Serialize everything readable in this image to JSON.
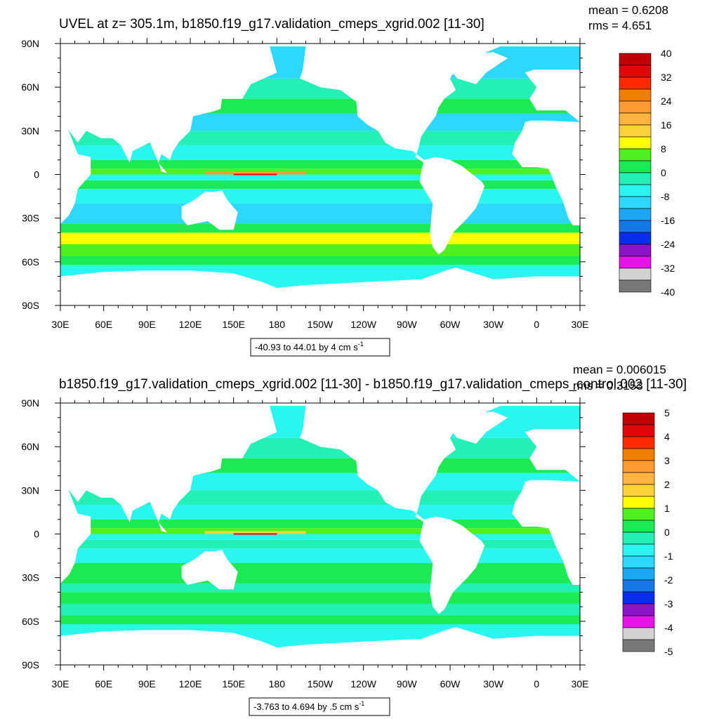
{
  "chart_data": [
    {
      "type": "heatmap",
      "title": "UVEL at z= 305.1m, b1850.f19_g17.validation_cmeps_xgrid.002 [11-30]",
      "stats": {
        "mean": "mean = 0.6208",
        "rms": "rms = 4.651"
      },
      "x_ticks": [
        "30E",
        "60E",
        "90E",
        "120E",
        "150E",
        "180",
        "150W",
        "120W",
        "90W",
        "60W",
        "30W",
        "0",
        "30E"
      ],
      "y_ticks": [
        "90N",
        "60N",
        "30N",
        "0",
        "30S",
        "60S",
        "90S"
      ],
      "xlim": [
        30,
        390
      ],
      "ylim": [
        -90,
        90
      ],
      "colorbar": {
        "colors": [
          "#c00000",
          "#e00808",
          "#ff2a00",
          "#f07c00",
          "#ff9b30",
          "#ffb43c",
          "#ffd23c",
          "#ffff00",
          "#50f020",
          "#1aeb52",
          "#22f0b4",
          "#2af6f0",
          "#2cd8ff",
          "#1aa8f4",
          "#1478e8",
          "#0a2ef0",
          "#8c14c8",
          "#e614e6",
          "#d2d2d2",
          "#787878"
        ],
        "labels": [
          "40",
          "32",
          "24",
          "16",
          "8",
          "0",
          "-8",
          "-16",
          "-24",
          "-32",
          "-40"
        ]
      },
      "info": "-40.93 to 44.01 by 4 cm s",
      "info_sup": "-1"
    },
    {
      "type": "heatmap",
      "title": "b1850.f19_g17.validation_cmeps_xgrid.002 [11-30] - b1850.f19_g17.validation_cmeps_control.002 [11-30]",
      "stats": {
        "mean": "mean = 0.006015",
        "rms": "rms = 0.3153"
      },
      "x_ticks": [
        "30E",
        "60E",
        "90E",
        "120E",
        "150E",
        "180",
        "150W",
        "120W",
        "90W",
        "60W",
        "30W",
        "0",
        "30E"
      ],
      "y_ticks": [
        "90N",
        "60N",
        "30N",
        "0",
        "30S",
        "60S",
        "90S"
      ],
      "xlim": [
        30,
        390
      ],
      "ylim": [
        -90,
        90
      ],
      "colorbar": {
        "colors": [
          "#c00000",
          "#e00808",
          "#ff2a00",
          "#f07c00",
          "#ff9b30",
          "#ffb43c",
          "#ffd23c",
          "#ffff00",
          "#50f020",
          "#1aeb52",
          "#22f0b4",
          "#2af6f0",
          "#2cd8ff",
          "#1aa8f4",
          "#1478e8",
          "#0a2ef0",
          "#8c14c8",
          "#e614e6",
          "#d2d2d2",
          "#787878"
        ],
        "labels": [
          "5",
          "4",
          "3",
          "2",
          "1",
          "0",
          "-1",
          "-2",
          "-3",
          "-4",
          "-5"
        ]
      },
      "info": "-3.763 to 4.694 by .5 cm s",
      "info_sup": "-1"
    }
  ]
}
